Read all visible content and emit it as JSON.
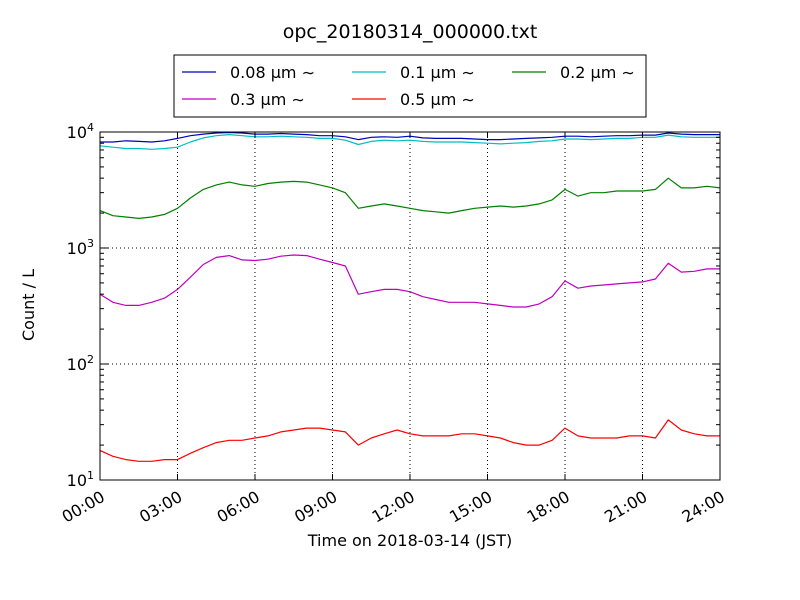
{
  "chart_data": {
    "type": "line",
    "title": "opc_20180314_000000.txt",
    "xlabel": "Time on 2018-03-14 (JST)",
    "ylabel": "Count / L",
    "yscale": "log",
    "ylim": [
      10,
      10000
    ],
    "xlim": [
      "00:00",
      "24:00"
    ],
    "xticks": [
      "00:00",
      "03:00",
      "06:00",
      "09:00",
      "12:00",
      "15:00",
      "18:00",
      "21:00",
      "24:00"
    ],
    "yticks": [
      {
        "value": 10,
        "base": "10",
        "exp": "1"
      },
      {
        "value": 100,
        "base": "10",
        "exp": "2"
      },
      {
        "value": 1000,
        "base": "10",
        "exp": "3"
      },
      {
        "value": 10000,
        "base": "10",
        "exp": "4"
      }
    ],
    "grid": true,
    "legend_position": "top-center",
    "x": [
      "00:00",
      "00:30",
      "01:00",
      "01:30",
      "02:00",
      "02:30",
      "03:00",
      "03:30",
      "04:00",
      "04:30",
      "05:00",
      "05:30",
      "06:00",
      "06:30",
      "07:00",
      "07:30",
      "08:00",
      "08:30",
      "09:00",
      "09:30",
      "10:00",
      "10:30",
      "11:00",
      "11:30",
      "12:00",
      "12:30",
      "13:00",
      "13:30",
      "14:00",
      "14:30",
      "15:00",
      "15:30",
      "16:00",
      "16:30",
      "17:00",
      "17:30",
      "18:00",
      "18:30",
      "19:00",
      "19:30",
      "20:00",
      "20:30",
      "21:00",
      "21:30",
      "22:00",
      "22:30",
      "23:00",
      "23:30",
      "24:00"
    ],
    "series": [
      {
        "name": "0.08 μm ∼",
        "color": "#0000bf",
        "values": [
          8200,
          8200,
          8400,
          8300,
          8200,
          8400,
          8800,
          9300,
          9600,
          9800,
          9900,
          9800,
          9600,
          9600,
          9700,
          9600,
          9500,
          9300,
          9300,
          9100,
          8600,
          9000,
          9100,
          9000,
          9200,
          8900,
          8800,
          8800,
          8800,
          8700,
          8600,
          8600,
          8700,
          8800,
          8900,
          9000,
          9200,
          9200,
          9100,
          9200,
          9300,
          9300,
          9400,
          9400,
          9800,
          9600,
          9500,
          9500,
          9500
        ]
      },
      {
        "name": "0.1 μm ∼",
        "color": "#00bfbf",
        "values": [
          7600,
          7400,
          7200,
          7200,
          7100,
          7200,
          7400,
          8200,
          8900,
          9300,
          9500,
          9300,
          9100,
          9100,
          9200,
          9100,
          9000,
          8800,
          8800,
          8500,
          7800,
          8300,
          8500,
          8400,
          8500,
          8300,
          8200,
          8200,
          8200,
          8100,
          8000,
          7900,
          8000,
          8100,
          8300,
          8400,
          8700,
          8700,
          8600,
          8700,
          8800,
          8800,
          9000,
          9000,
          9400,
          9100,
          9000,
          9000,
          9000
        ]
      },
      {
        "name": "0.2 μm ∼",
        "color": "#008000",
        "values": [
          2100,
          1900,
          1850,
          1800,
          1850,
          1950,
          2200,
          2700,
          3200,
          3500,
          3700,
          3500,
          3400,
          3600,
          3700,
          3750,
          3700,
          3500,
          3300,
          3000,
          2200,
          2300,
          2400,
          2300,
          2200,
          2100,
          2050,
          2000,
          2100,
          2200,
          2250,
          2300,
          2250,
          2300,
          2400,
          2600,
          3200,
          2800,
          3000,
          3000,
          3100,
          3100,
          3100,
          3200,
          4000,
          3300,
          3300,
          3400,
          3300
        ]
      },
      {
        "name": "0.3 μm ∼",
        "color": "#bf00bf",
        "values": [
          400,
          340,
          320,
          320,
          340,
          370,
          440,
          560,
          720,
          830,
          860,
          790,
          780,
          800,
          850,
          870,
          860,
          800,
          750,
          700,
          400,
          420,
          440,
          440,
          420,
          380,
          360,
          340,
          340,
          340,
          330,
          320,
          310,
          310,
          330,
          380,
          520,
          450,
          470,
          480,
          490,
          500,
          510,
          540,
          740,
          620,
          630,
          660,
          660
        ]
      },
      {
        "name": "0.5 μm ∼",
        "color": "#ff0000",
        "values": [
          18,
          16,
          15,
          14.5,
          14.5,
          15,
          15,
          17,
          19,
          21,
          22,
          22,
          23,
          24,
          26,
          27,
          28,
          28,
          27,
          26,
          20,
          23,
          25,
          27,
          25,
          24,
          24,
          24,
          25,
          25,
          24,
          23,
          21,
          20,
          20,
          22,
          28,
          24,
          23,
          23,
          23,
          24,
          24,
          23,
          33,
          27,
          25,
          24,
          24
        ]
      }
    ]
  }
}
